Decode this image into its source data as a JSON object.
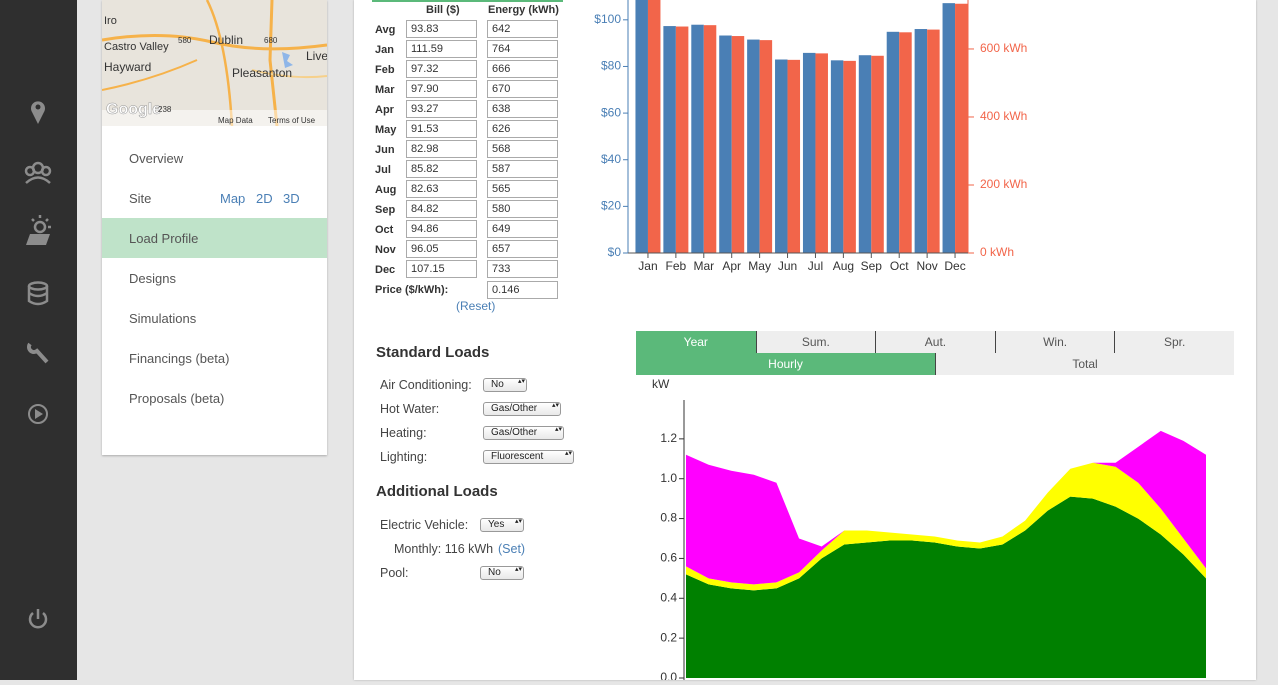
{
  "map": {
    "labels": [
      "Iro",
      "Castro Valley",
      "Dublin",
      "Pleasanton",
      "Hayward",
      "Live",
      "Google",
      "Map Data",
      "Terms of Use",
      "580",
      "680",
      "238"
    ]
  },
  "nav": {
    "items": [
      "Overview",
      "Site",
      "Load Profile",
      "Designs",
      "Simulations",
      "Financings (beta)",
      "Proposals (beta)"
    ],
    "active_index": 2,
    "site_links": [
      "Map",
      "2D",
      "3D"
    ]
  },
  "table": {
    "headers": [
      "Bill ($)",
      "Energy (kWh)"
    ],
    "rows": [
      [
        "Avg",
        "93.83",
        "642"
      ],
      [
        "Jan",
        "111.59",
        "764"
      ],
      [
        "Feb",
        "97.32",
        "666"
      ],
      [
        "Mar",
        "97.90",
        "670"
      ],
      [
        "Apr",
        "93.27",
        "638"
      ],
      [
        "May",
        "91.53",
        "626"
      ],
      [
        "Jun",
        "82.98",
        "568"
      ],
      [
        "Jul",
        "85.82",
        "587"
      ],
      [
        "Aug",
        "82.63",
        "565"
      ],
      [
        "Sep",
        "84.82",
        "580"
      ],
      [
        "Oct",
        "94.86",
        "649"
      ],
      [
        "Nov",
        "96.05",
        "657"
      ],
      [
        "Dec",
        "107.15",
        "733"
      ]
    ],
    "price": {
      "label": "Price ($/kWh):",
      "value": "0.146"
    },
    "reset": "(Reset)"
  },
  "standard_loads": {
    "title": "Standard Loads",
    "items": [
      {
        "label": "Air Conditioning:",
        "value": "No"
      },
      {
        "label": "Hot Water:",
        "value": "Gas/Other"
      },
      {
        "label": "Heating:",
        "value": "Gas/Other"
      },
      {
        "label": "Lighting:",
        "value": "Fluorescent"
      }
    ]
  },
  "additional_loads": {
    "title": "Additional Loads",
    "items": [
      {
        "label": "Electric Vehicle:",
        "value": "Yes"
      },
      {
        "label": "Pool:",
        "value": "No"
      }
    ],
    "monthly": {
      "text": "Monthly: 116 kWh",
      "link": "(Set)"
    }
  },
  "tabs": {
    "seasons": [
      "Year",
      "Sum.",
      "Aut.",
      "Win.",
      "Spr."
    ],
    "modes": [
      "Hourly",
      "Total"
    ],
    "active_season": 0,
    "active_mode": 0
  },
  "chart_data": [
    {
      "type": "bar",
      "categories": [
        "Jan",
        "Feb",
        "Mar",
        "Apr",
        "May",
        "Jun",
        "Jul",
        "Aug",
        "Sep",
        "Oct",
        "Nov",
        "Dec"
      ],
      "series": [
        {
          "color": "#4a7fb5",
          "values": [
            111.59,
            97.32,
            97.9,
            93.27,
            91.53,
            82.98,
            85.82,
            82.63,
            84.82,
            94.86,
            96.05,
            107.15
          ]
        },
        {
          "color": "#f2654a",
          "axis": "y2",
          "values": [
            764,
            666,
            670,
            638,
            626,
            568,
            587,
            565,
            580,
            649,
            657,
            733
          ]
        }
      ],
      "ylim": [
        0,
        108.5
      ],
      "yticks": [
        {
          "value": 0,
          "label": "$0"
        },
        {
          "value": 20,
          "label": "$20"
        },
        {
          "value": 40,
          "label": "$40"
        },
        {
          "value": 60,
          "label": "$60"
        },
        {
          "value": 80,
          "label": "$80"
        },
        {
          "value": 100,
          "label": "$100"
        }
      ],
      "y2lim": [
        0,
        744
      ],
      "y2ticks": [
        {
          "value": 0,
          "label": "0 kWh"
        },
        {
          "value": 200,
          "label": "200 kWh"
        },
        {
          "value": 400,
          "label": "400 kWh"
        },
        {
          "value": 600,
          "label": "600 kWh"
        }
      ]
    },
    {
      "type": "area",
      "stacked": true,
      "y_label": "kW",
      "series": [
        {
          "color": "#008000",
          "values": [
            0.52,
            0.47,
            0.45,
            0.44,
            0.45,
            0.5,
            0.6,
            0.67,
            0.68,
            0.69,
            0.69,
            0.68,
            0.66,
            0.65,
            0.67,
            0.74,
            0.84,
            0.91,
            0.9,
            0.86,
            0.8,
            0.72,
            0.62,
            0.5
          ]
        },
        {
          "color": "#ffff00",
          "values": [
            0.04,
            0.03,
            0.03,
            0.03,
            0.03,
            0.03,
            0.04,
            0.07,
            0.06,
            0.04,
            0.03,
            0.03,
            0.03,
            0.03,
            0.04,
            0.05,
            0.09,
            0.14,
            0.18,
            0.2,
            0.18,
            0.13,
            0.08,
            0.05
          ]
        },
        {
          "color": "#ff00ff",
          "values": [
            0.56,
            0.57,
            0.56,
            0.55,
            0.5,
            0.17,
            0.02,
            0,
            0,
            0,
            0,
            0,
            0,
            0,
            0,
            0,
            0,
            0,
            0,
            0.02,
            0.18,
            0.39,
            0.49,
            0.57
          ]
        }
      ],
      "ylim": [
        0,
        1.4
      ],
      "yticks": [
        {
          "value": 0,
          "label": "0.0"
        },
        0.2,
        0.4,
        0.6,
        0.8,
        {
          "value": 1,
          "label": "1.0"
        },
        1.2
      ]
    }
  ]
}
